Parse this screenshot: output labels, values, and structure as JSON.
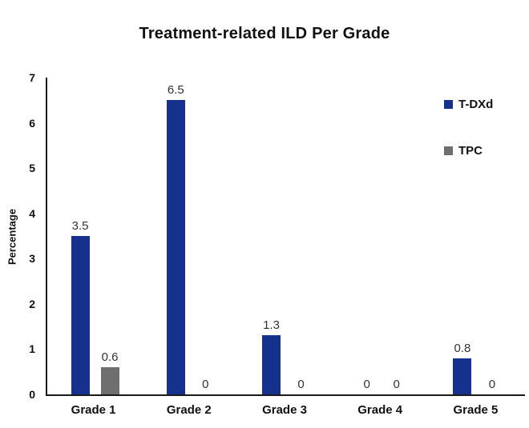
{
  "chart_data": {
    "type": "bar",
    "title": "Treatment-related ILD Per Grade",
    "categories": [
      "Grade 1",
      "Grade 2",
      "Grade 3",
      "Grade 4",
      "Grade 5"
    ],
    "series": [
      {
        "name": "T-DXd",
        "color": "#16308E",
        "values": [
          3.5,
          6.5,
          1.3,
          0,
          0.8
        ]
      },
      {
        "name": "TPC",
        "color": "#6F6F6F",
        "values": [
          0.6,
          0,
          0,
          0,
          0
        ]
      }
    ],
    "xlabel": "",
    "ylabel": "Percentage",
    "ylim": [
      0,
      7
    ],
    "yticks": [
      0,
      1,
      2,
      3,
      4,
      5,
      6,
      7
    ],
    "grid": false,
    "data_labels": true,
    "legend_position": "top-right",
    "axis_color": "#1a1a1a",
    "label_color": "#333333",
    "text_color": "#111111",
    "background": "#FFFFFF"
  }
}
